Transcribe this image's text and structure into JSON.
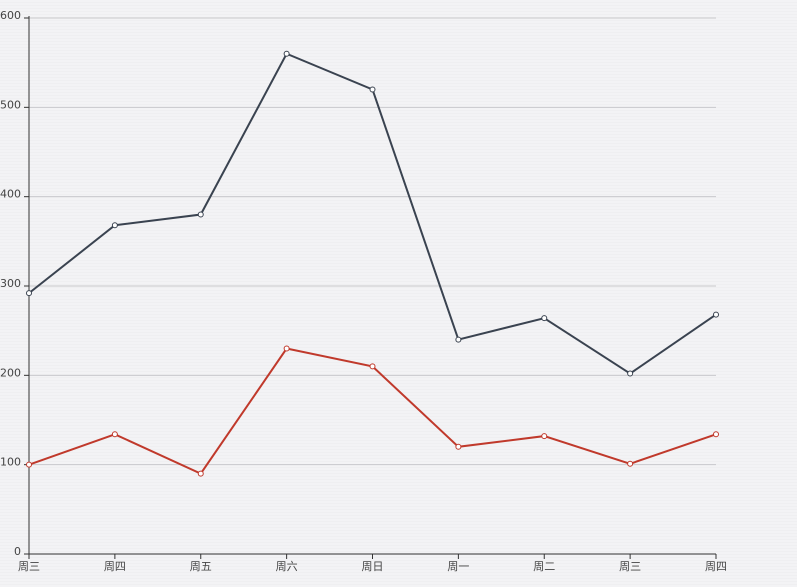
{
  "chart_data": {
    "type": "line",
    "categories": [
      "周三",
      "周四",
      "周五",
      "周六",
      "周日",
      "周一",
      "周二",
      "周三",
      "周四"
    ],
    "series": [
      {
        "color": "#3a4350",
        "values": [
          292,
          368,
          380,
          560,
          520,
          240,
          264,
          202,
          268
        ]
      },
      {
        "color": "#c0392b",
        "values": [
          100,
          134,
          90,
          230,
          210,
          120,
          132,
          101,
          134
        ]
      }
    ],
    "ylim": [
      0,
      600
    ],
    "yticks": [
      0,
      100,
      200,
      300,
      400,
      500,
      600
    ],
    "grid": true
  }
}
